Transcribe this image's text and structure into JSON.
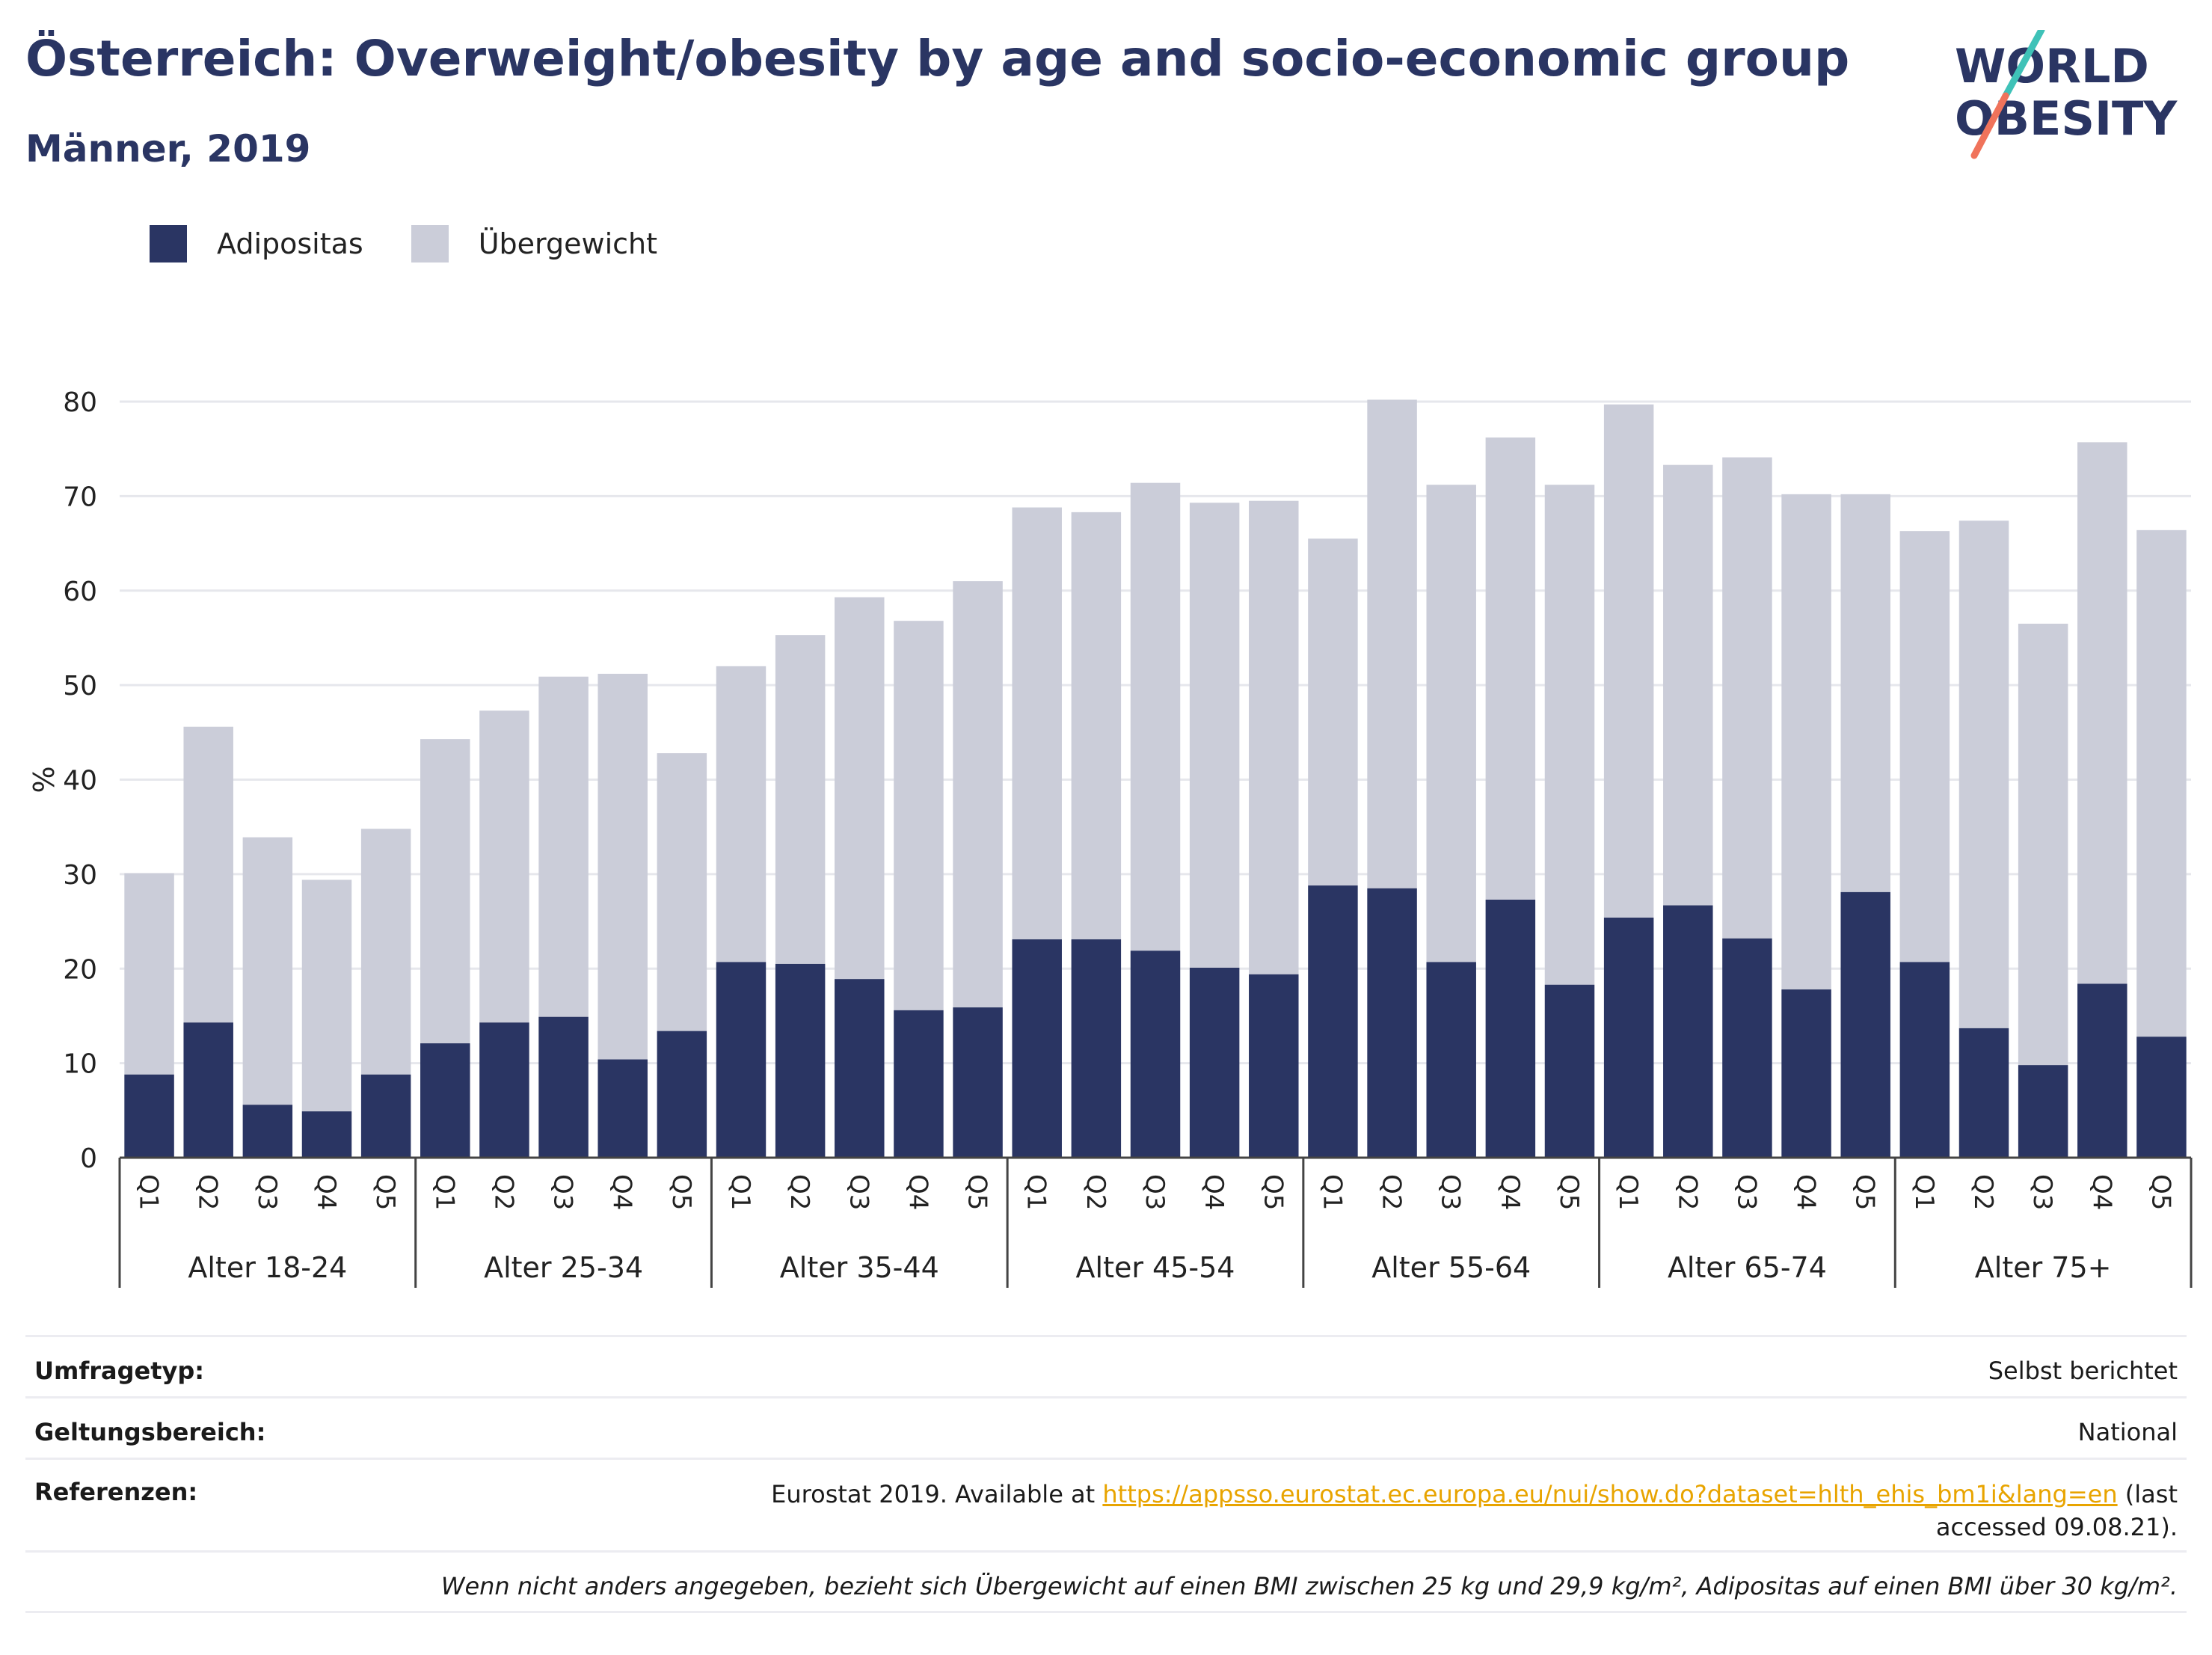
{
  "header": {
    "title": "Österreich: Overweight/obesity by age and socio-economic group",
    "subtitle": "Männer, 2019"
  },
  "logo": {
    "line1": "WORLD",
    "line2": "OBESITY"
  },
  "legend": [
    {
      "label": "Adipositas",
      "color": "#2a3563"
    },
    {
      "label": "Übergewicht",
      "color": "#cbcdd9"
    }
  ],
  "colors": {
    "obesity": "#2a3563",
    "overweight": "#cbcdd9",
    "accent_link": "#e8a400",
    "logo_teal": "#3fc2b8",
    "logo_coral": "#f0735b"
  },
  "chart_data": {
    "type": "bar",
    "stacked": true,
    "ylabel": "%",
    "ylim": [
      0,
      80
    ],
    "yticks": [
      0,
      10,
      20,
      30,
      40,
      50,
      60,
      70,
      80
    ],
    "grid": true,
    "legend_position": "top-left",
    "groups": [
      {
        "label": "Alter 18-24",
        "categories": [
          "Q1",
          "Q2",
          "Q3",
          "Q4",
          "Q5"
        ],
        "adipositas": [
          8.8,
          14.3,
          5.6,
          4.9,
          8.8
        ],
        "total": [
          30.1,
          45.6,
          33.9,
          29.4,
          34.8
        ]
      },
      {
        "label": "Alter 25-34",
        "categories": [
          "Q1",
          "Q2",
          "Q3",
          "Q4",
          "Q5"
        ],
        "adipositas": [
          12.1,
          14.3,
          14.9,
          10.4,
          13.4
        ],
        "total": [
          44.3,
          47.3,
          50.9,
          51.2,
          42.8
        ]
      },
      {
        "label": "Alter 35-44",
        "categories": [
          "Q1",
          "Q2",
          "Q3",
          "Q4",
          "Q5"
        ],
        "adipositas": [
          20.7,
          20.5,
          18.9,
          15.6,
          15.9
        ],
        "total": [
          52.0,
          55.3,
          59.3,
          56.8,
          61.0
        ]
      },
      {
        "label": "Alter 45-54",
        "categories": [
          "Q1",
          "Q2",
          "Q3",
          "Q4",
          "Q5"
        ],
        "adipositas": [
          23.1,
          23.1,
          21.9,
          20.1,
          19.4
        ],
        "total": [
          68.8,
          68.3,
          71.4,
          69.3,
          69.5
        ]
      },
      {
        "label": "Alter 55-64",
        "categories": [
          "Q1",
          "Q2",
          "Q3",
          "Q4",
          "Q5"
        ],
        "adipositas": [
          28.8,
          28.5,
          20.7,
          27.3,
          18.3
        ],
        "total": [
          65.5,
          80.2,
          71.2,
          76.2,
          71.2
        ]
      },
      {
        "label": "Alter 65-74",
        "categories": [
          "Q1",
          "Q2",
          "Q3",
          "Q4",
          "Q5"
        ],
        "adipositas": [
          25.4,
          26.7,
          23.2,
          17.8,
          28.1
        ],
        "total": [
          79.7,
          73.3,
          74.1,
          70.2,
          70.2
        ]
      },
      {
        "label": "Alter 75+",
        "categories": [
          "Q1",
          "Q2",
          "Q3",
          "Q4",
          "Q5"
        ],
        "adipositas": [
          20.7,
          13.7,
          9.8,
          18.4,
          12.8
        ],
        "total": [
          66.3,
          67.4,
          56.5,
          75.7,
          66.4
        ]
      }
    ]
  },
  "meta": {
    "survey_key": "Umfragetyp:",
    "survey_val": "Selbst berichtet",
    "scope_key": "Geltungsbereich:",
    "scope_val": "National",
    "ref_key": "Referenzen:",
    "ref_pre": "Eurostat 2019. Available at ",
    "ref_link": "https://appsso.eurostat.ec.europa.eu/nui/show.do?dataset=hlth_ehis_bm1i&lang=en",
    "ref_post": " (last accessed 09.08.21).",
    "footnote": "Wenn nicht anders angegeben, bezieht sich Übergewicht auf einen BMI zwischen 25 kg und 29,9 kg/m², Adipositas auf einen BMI über 30 kg/m²."
  }
}
